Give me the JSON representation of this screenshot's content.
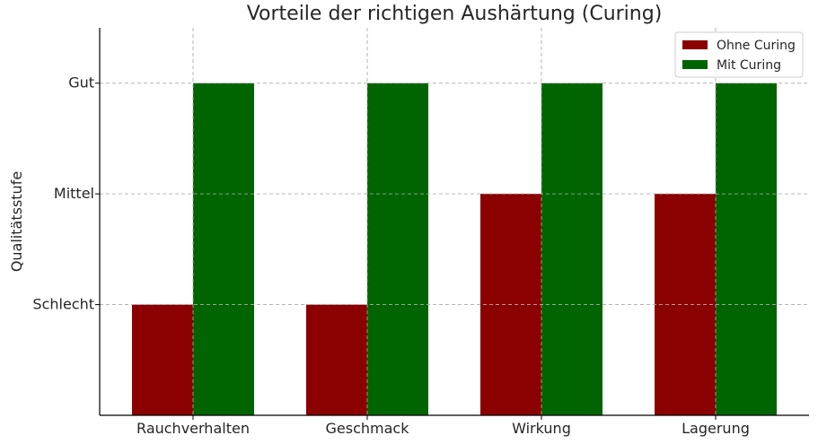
{
  "chart_data": {
    "type": "bar",
    "title": "Vorteile der richtigen Aushärtung (Curing)",
    "xlabel": "",
    "ylabel": "Qualitätsstufe",
    "categories": [
      "Rauchverhalten",
      "Geschmack",
      "Wirkung",
      "Lagerung"
    ],
    "series": [
      {
        "name": "Ohne Curing",
        "color": "#8b0000",
        "values": [
          1,
          1,
          2,
          2
        ]
      },
      {
        "name": "Mit Curing",
        "color": "#006400",
        "values": [
          3,
          3,
          3,
          3
        ]
      }
    ],
    "yticks": [
      {
        "value": 1,
        "label": "Schlecht"
      },
      {
        "value": 2,
        "label": "Mittel"
      },
      {
        "value": 3,
        "label": "Gut"
      }
    ],
    "ylim": [
      0,
      3.5
    ],
    "grid": true,
    "legend_position": "top-right"
  }
}
